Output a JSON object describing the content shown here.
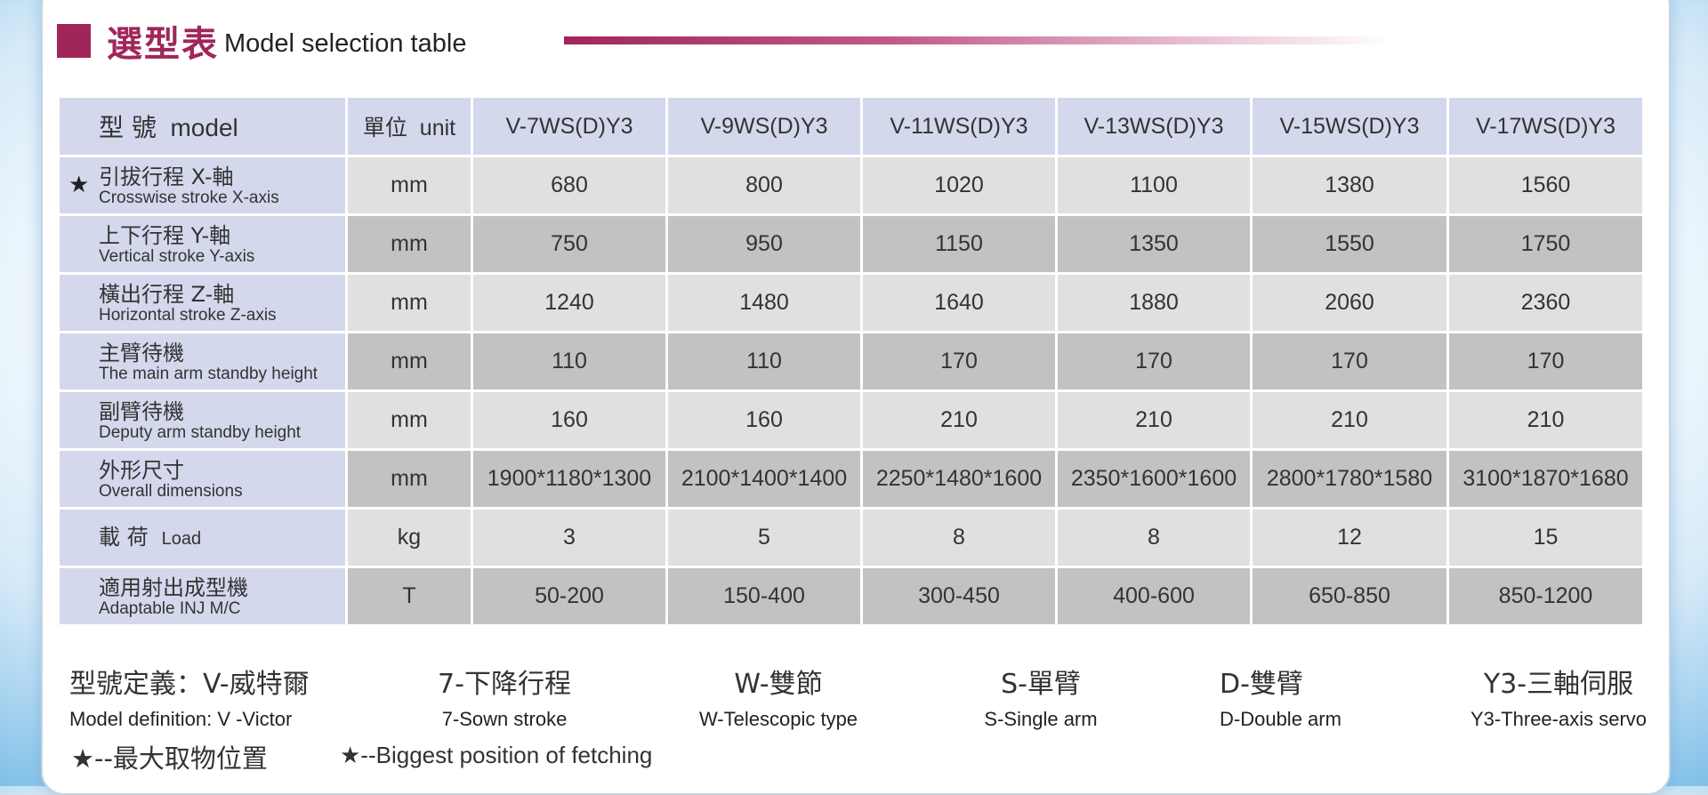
{
  "header": {
    "title_cn": "選型表",
    "title_en": "Model selection table"
  },
  "colors": {
    "accent": "#a0265a",
    "label_bg": "#d4d8ec",
    "cell_light": "#e0e0e0",
    "cell_dark": "#c2c2c2"
  },
  "table": {
    "header": {
      "model_cn": "型 號",
      "model_en": "model",
      "unit_cn": "單位",
      "unit_en": "unit",
      "models": [
        "V-7WS(D)Y3",
        "V-9WS(D)Y3",
        "V-11WS(D)Y3",
        "V-13WS(D)Y3",
        "V-15WS(D)Y3",
        "V-17WS(D)Y3"
      ]
    },
    "rows": [
      {
        "star": "★",
        "label_cn": "引拔行程 X-軸",
        "label_en": "Crosswise stroke X-axis",
        "unit": "mm",
        "values": [
          "680",
          "800",
          "1020",
          "1100",
          "1380",
          "1560"
        ]
      },
      {
        "label_cn": "上下行程 Y-軸",
        "label_en": "Vertical stroke Y-axis",
        "unit": "mm",
        "values": [
          "750",
          "950",
          "1150",
          "1350",
          "1550",
          "1750"
        ]
      },
      {
        "label_cn": "橫出行程 Z-軸",
        "label_en": "Horizontal stroke Z-axis",
        "unit": "mm",
        "values": [
          "1240",
          "1480",
          "1640",
          "1880",
          "2060",
          "2360"
        ]
      },
      {
        "label_cn": "主臂待機",
        "label_en": "The main arm standby height",
        "unit": "mm",
        "values": [
          "110",
          "110",
          "170",
          "170",
          "170",
          "170"
        ]
      },
      {
        "label_cn": "副臂待機",
        "label_en": "Deputy arm standby height",
        "unit": "mm",
        "values": [
          "160",
          "160",
          "210",
          "210",
          "210",
          "210"
        ]
      },
      {
        "label_cn": "外形尺寸",
        "label_en": "Overall dimensions",
        "unit": "mm",
        "values": [
          "1900*1180*1300",
          "2100*1400*1400",
          "2250*1480*1600",
          "2350*1600*1600",
          "2800*1780*1580",
          "3100*1870*1680"
        ]
      },
      {
        "label_cn": "載 荷",
        "label_en": "Load",
        "unit": "kg",
        "values": [
          "3",
          "5",
          "8",
          "8",
          "12",
          "15"
        ]
      },
      {
        "label_cn": "適用射出成型機",
        "label_en": "Adaptable INJ M/C",
        "unit": "T",
        "values": [
          "50-200",
          "150-400",
          "300-450",
          "400-600",
          "650-850",
          "850-1200"
        ]
      }
    ]
  },
  "definitions": [
    {
      "cn": "型號定義：V-威特爾",
      "en": "Model definition: V -Victor"
    },
    {
      "cn": "7-下降行程",
      "en": "7-Sown stroke"
    },
    {
      "cn": "W-雙節",
      "en": "W-Telescopic type"
    },
    {
      "cn": "S-單臂",
      "en": "S-Single arm"
    },
    {
      "cn": "D-雙臂",
      "en": "D-Double arm"
    },
    {
      "cn": "Y3-三軸伺服",
      "en": "Y3-Three-axis servo"
    }
  ],
  "notes": {
    "cn": "★--最大取物位置",
    "en": "★--Biggest position of fetching"
  }
}
